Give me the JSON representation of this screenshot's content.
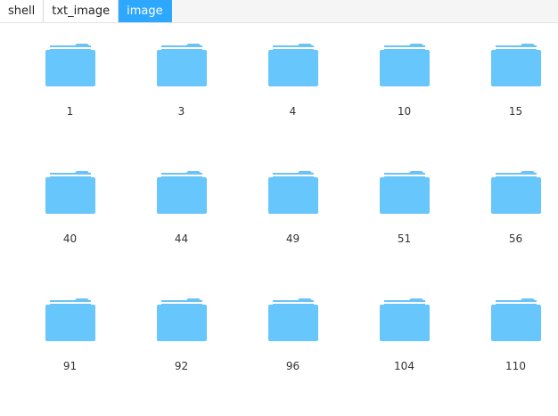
{
  "breadcrumb": [
    {
      "label": "shell",
      "active": false
    },
    {
      "label": "txt_image",
      "active": false
    },
    {
      "label": "image",
      "active": true
    }
  ],
  "folders": [
    "1",
    "3",
    "4",
    "10",
    "15",
    "40",
    "44",
    "49",
    "51",
    "56",
    "91",
    "92",
    "96",
    "104",
    "110"
  ],
  "colors": {
    "accent": "#2ea7ff",
    "folder": "#67c6fc",
    "folder_tab": "#6ac2f5"
  },
  "icons": {
    "folder": "folder-icon"
  }
}
